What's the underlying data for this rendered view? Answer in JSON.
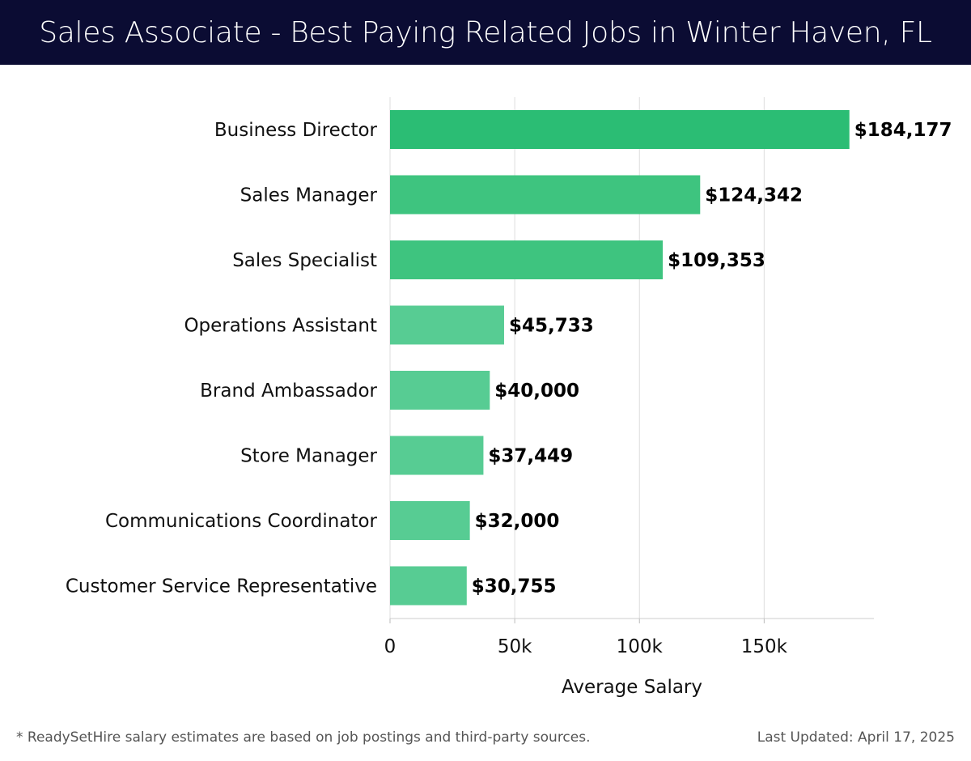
{
  "header": {
    "title": "Sales Associate - Best Paying Related Jobs in Winter Haven, FL",
    "background": "#0b0c33",
    "text_color": "#ffffff"
  },
  "chart_data": {
    "type": "bar",
    "orientation": "horizontal",
    "categories": [
      "Business Director",
      "Sales Manager",
      "Sales Specialist",
      "Operations Assistant",
      "Brand Ambassador",
      "Store Manager",
      "Communications Coordinator",
      "Customer Service Representative"
    ],
    "values": [
      184177,
      124342,
      109353,
      45733,
      40000,
      37449,
      32000,
      30755
    ],
    "value_labels": [
      "$184,177",
      "$124,342",
      "$109,353",
      "$45,733",
      "$40,000",
      "$37,449",
      "$32,000",
      "$30,755"
    ],
    "bar_colors": [
      "#2bbd74",
      "#3ec47f",
      "#3ec47f",
      "#57cc93",
      "#57cc93",
      "#57cc93",
      "#57cc93",
      "#57cc93"
    ],
    "xlabel": "Average Salary",
    "ylabel": "",
    "xlim": [
      0,
      194000
    ],
    "xticks": [
      {
        "value": 0,
        "label": "0"
      },
      {
        "value": 50000,
        "label": "50k"
      },
      {
        "value": 100000,
        "label": "100k"
      },
      {
        "value": 150000,
        "label": "150k"
      }
    ],
    "grid": true,
    "gridline_color": "#dddddd"
  },
  "footer": {
    "note": "* ReadySetHire salary estimates are based on job postings and third-party sources.",
    "updated": "Last Updated: April 17, 2025"
  }
}
